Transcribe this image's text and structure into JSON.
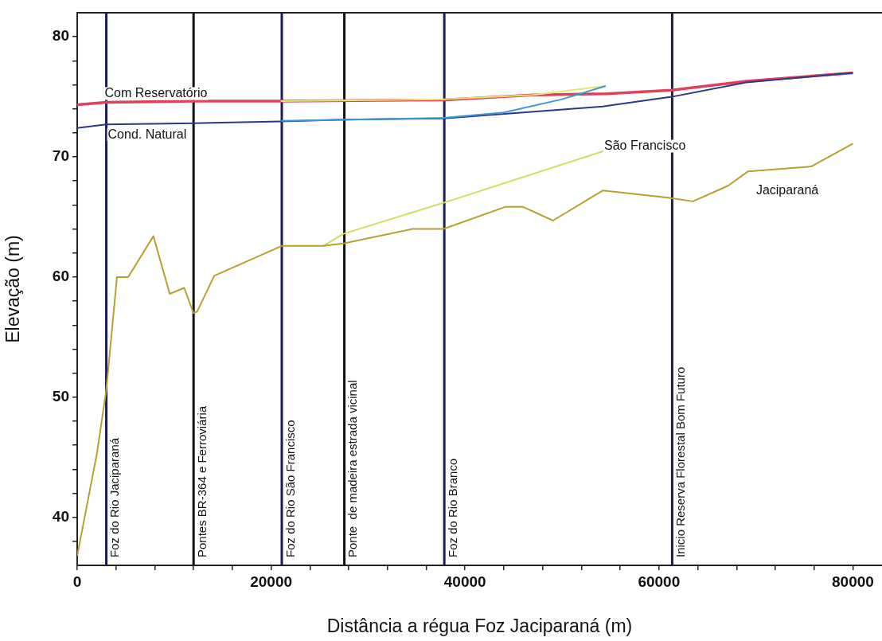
{
  "chart_data": {
    "type": "line",
    "xlabel": "Distância a régua Foz Jaciparaná (m)",
    "ylabel": "Elevação (m)",
    "xlim": [
      0,
      83000
    ],
    "ylim": [
      36,
      82
    ],
    "xticks": [
      0,
      {
        "value": 4000,
        "label": null
      },
      {
        "value": 8000,
        "label": null
      },
      {
        "value": 12000,
        "label": null
      },
      {
        "value": 16000,
        "label": null
      },
      20000,
      {
        "value": 24000,
        "label": null
      },
      {
        "value": 28000,
        "label": null
      },
      {
        "value": 32000,
        "label": null
      },
      {
        "value": 36000,
        "label": null
      },
      40000,
      {
        "value": 44000,
        "label": null
      },
      {
        "value": 48000,
        "label": null
      },
      {
        "value": 52000,
        "label": null
      },
      {
        "value": 56000,
        "label": null
      },
      60000,
      {
        "value": 64000,
        "label": null
      },
      {
        "value": 68000,
        "label": null
      },
      {
        "value": 72000,
        "label": null
      },
      {
        "value": 76000,
        "label": null
      },
      80000
    ],
    "yticks": [
      {
        "value": 38,
        "label": null
      },
      40,
      {
        "value": 42,
        "label": null
      },
      {
        "value": 44,
        "label": null
      },
      {
        "value": 46,
        "label": null
      },
      {
        "value": 48,
        "label": null
      },
      50,
      {
        "value": 52,
        "label": null
      },
      {
        "value": 54,
        "label": null
      },
      {
        "value": 56,
        "label": null
      },
      {
        "value": 58,
        "label": null
      },
      60,
      {
        "value": 62,
        "label": null
      },
      {
        "value": 64,
        "label": null
      },
      {
        "value": 66,
        "label": null
      },
      {
        "value": 68,
        "label": null
      },
      70,
      {
        "value": 72,
        "label": null
      },
      {
        "value": 74,
        "label": null
      },
      {
        "value": 76,
        "label": null
      },
      {
        "value": 78,
        "label": null
      },
      80
    ],
    "grid": false,
    "legend": false,
    "marker": "none",
    "line_style": "solid",
    "series": [
      {
        "name": "Com Reservatório",
        "color": "#e0405a",
        "x": [
          0,
          3000,
          12000,
          21000,
          37800,
          47000,
          54500,
          61300,
          69000,
          80000
        ],
        "values": [
          74.35,
          74.55,
          74.65,
          74.65,
          74.75,
          75.15,
          75.25,
          75.55,
          76.3,
          77.0
        ]
      },
      {
        "color": "#e6e670",
        "x": [
          21000,
          37800,
          47000,
          54500
        ],
        "values": [
          74.65,
          74.8,
          75.15,
          75.9
        ]
      },
      {
        "name": "Cond. Natural",
        "color": "#2a3a8a",
        "x": [
          0,
          3000,
          12000,
          21000,
          27500,
          37800,
          54200,
          61300,
          69000,
          80000
        ],
        "values": [
          72.4,
          72.7,
          72.8,
          72.95,
          73.1,
          73.2,
          74.2,
          75.0,
          76.2,
          77.0
        ]
      },
      {
        "color": "#3a9ad8",
        "x": [
          21000,
          37800,
          44000,
          50000,
          54500
        ],
        "values": [
          73.0,
          73.25,
          73.7,
          74.8,
          75.9
        ]
      },
      {
        "name": "São Francisco",
        "color": "#d4dc60",
        "x": [
          25400,
          27460,
          37860,
          54350
        ],
        "values": [
          62.6,
          63.6,
          66.2,
          70.5
        ]
      },
      {
        "name": "Jaciparaná",
        "color": "#b8a030",
        "x": [
          0,
          2030,
          3000,
          4100,
          5250,
          7860,
          9540,
          11030,
          11990,
          12350,
          14130,
          21140,
          25400,
          27460,
          34610,
          37770,
          44200,
          45940,
          49070,
          54190,
          60950,
          63500,
          67130,
          69200,
          75700,
          80000
        ],
        "values": [
          36.8,
          45.3,
          50.6,
          60.0,
          60.0,
          63.4,
          58.6,
          59.1,
          57.0,
          57.1,
          60.1,
          62.6,
          62.6,
          62.8,
          64.0,
          64.0,
          65.85,
          65.85,
          64.7,
          67.2,
          66.6,
          66.3,
          67.6,
          68.8,
          69.2,
          71.1
        ]
      }
    ],
    "ref_lines": [
      {
        "axis": "x",
        "value": 3000,
        "label": "Foz do Rio Jaciparaná",
        "color": "#1c1c5a"
      },
      {
        "axis": "x",
        "value": 12000,
        "label": "Pontes BR-364 e Ferroviária",
        "color": "#111111"
      },
      {
        "axis": "x",
        "value": 21100,
        "label": "Foz do Rio São Francisco",
        "color": "#1c1c5a"
      },
      {
        "axis": "x",
        "value": 27550,
        "label": "Ponte  de madeira estrada vicinal",
        "color": "#111111"
      },
      {
        "axis": "x",
        "value": 37860,
        "label": "Foz do Rio Branco",
        "color": "#1c1c5a"
      },
      {
        "axis": "x",
        "value": 61360,
        "label": "Inicio Reserva Florestal Bom Futuro",
        "color": "#1c1c5a"
      }
    ]
  }
}
